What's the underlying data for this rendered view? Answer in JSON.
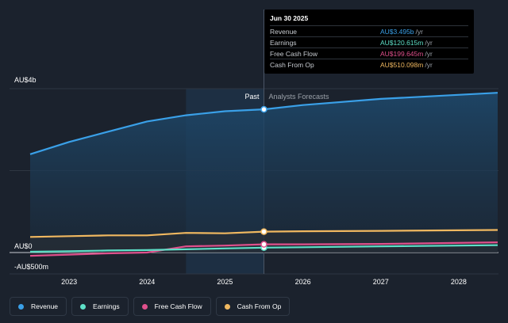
{
  "chart_data": {
    "type": "area",
    "x_ticks": [
      "2023",
      "2024",
      "2025",
      "2026",
      "2027",
      "2028"
    ],
    "y_ticks": [
      "AU$4b",
      "AU$0",
      "-AU$500m"
    ],
    "divider_labels": {
      "past": "Past",
      "forecast": "Analysts Forecasts"
    },
    "series": [
      {
        "name": "Revenue",
        "color": "#3aa0e8",
        "unit": "AU$b",
        "points": [
          [
            2022.5,
            2.4
          ],
          [
            2023.0,
            2.7
          ],
          [
            2023.5,
            2.95
          ],
          [
            2024.0,
            3.2
          ],
          [
            2024.5,
            3.35
          ],
          [
            2025.0,
            3.45
          ],
          [
            2025.5,
            3.495
          ],
          [
            2026.0,
            3.6
          ],
          [
            2027.0,
            3.75
          ],
          [
            2028.5,
            3.9
          ]
        ]
      },
      {
        "name": "Earnings",
        "color": "#5ee0c8",
        "unit": "AU$b",
        "points": [
          [
            2022.5,
            0.02
          ],
          [
            2023.0,
            0.03
          ],
          [
            2023.5,
            0.05
          ],
          [
            2024.0,
            0.06
          ],
          [
            2024.5,
            0.08
          ],
          [
            2025.0,
            0.1
          ],
          [
            2025.5,
            0.12
          ],
          [
            2026.0,
            0.13
          ],
          [
            2027.0,
            0.15
          ],
          [
            2028.5,
            0.18
          ]
        ]
      },
      {
        "name": "Free Cash Flow",
        "color": "#e0508c",
        "unit": "AU$b",
        "points": [
          [
            2022.5,
            -0.08
          ],
          [
            2023.0,
            -0.05
          ],
          [
            2023.5,
            -0.02
          ],
          [
            2024.0,
            0.0
          ],
          [
            2024.5,
            0.15
          ],
          [
            2025.0,
            0.17
          ],
          [
            2025.5,
            0.2
          ],
          [
            2026.0,
            0.2
          ],
          [
            2027.0,
            0.21
          ],
          [
            2028.5,
            0.25
          ]
        ]
      },
      {
        "name": "Cash From Op",
        "color": "#f0b860",
        "unit": "AU$b",
        "points": [
          [
            2022.5,
            0.38
          ],
          [
            2023.0,
            0.4
          ],
          [
            2023.5,
            0.42
          ],
          [
            2024.0,
            0.42
          ],
          [
            2024.5,
            0.48
          ],
          [
            2025.0,
            0.47
          ],
          [
            2025.5,
            0.51
          ],
          [
            2026.0,
            0.52
          ],
          [
            2027.0,
            0.53
          ],
          [
            2028.5,
            0.55
          ]
        ]
      }
    ],
    "ylim": [
      -0.5,
      4.0
    ],
    "xlim": [
      2022.5,
      2028.5
    ],
    "past_end": 2025.5,
    "highlight_start": 2024.5,
    "grid": true,
    "legend_position": "bottom-left"
  },
  "tooltip": {
    "date": "Jun 30 2025",
    "rows": [
      {
        "label": "Revenue",
        "value": "AU$3.495b",
        "unit": "/yr",
        "color": "#3aa0e8"
      },
      {
        "label": "Earnings",
        "value": "AU$120.615m",
        "unit": "/yr",
        "color": "#5ee0c8"
      },
      {
        "label": "Free Cash Flow",
        "value": "AU$199.645m",
        "unit": "/yr",
        "color": "#e0508c"
      },
      {
        "label": "Cash From Op",
        "value": "AU$510.098m",
        "unit": "/yr",
        "color": "#f0b860"
      }
    ]
  },
  "legend": [
    {
      "label": "Revenue",
      "color": "#3aa0e8"
    },
    {
      "label": "Earnings",
      "color": "#5ee0c8"
    },
    {
      "label": "Free Cash Flow",
      "color": "#e0508c"
    },
    {
      "label": "Cash From Op",
      "color": "#f0b860"
    }
  ]
}
